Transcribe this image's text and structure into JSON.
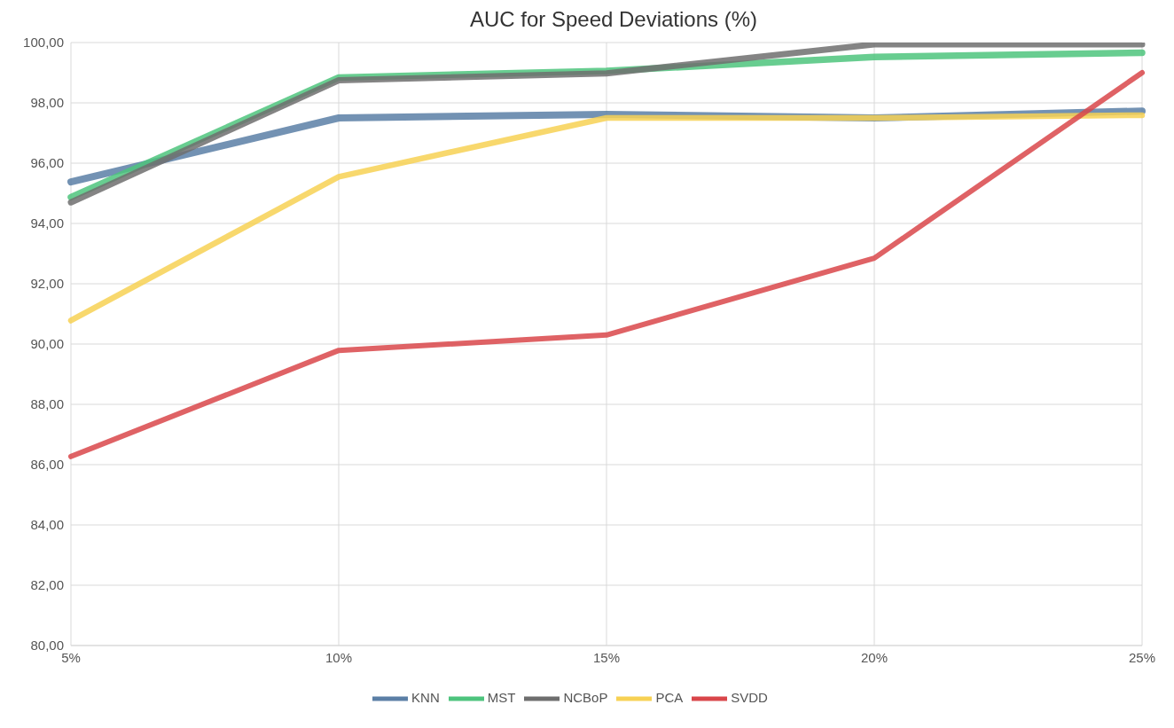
{
  "chart_data": {
    "type": "line",
    "title": "AUC for Speed Deviations (%)",
    "categories": [
      "5%",
      "10%",
      "15%",
      "20%",
      "25%"
    ],
    "series": [
      {
        "name": "KNN",
        "color": "#5b7fa6",
        "values": [
          95.38,
          97.5,
          97.62,
          97.5,
          97.73
        ]
      },
      {
        "name": "MST",
        "color": "#4dc47d",
        "values": [
          94.87,
          98.84,
          99.06,
          99.52,
          99.66
        ]
      },
      {
        "name": "NCBoP",
        "color": "#6e6e6e",
        "values": [
          94.7,
          98.75,
          98.98,
          99.94,
          99.94
        ]
      },
      {
        "name": "PCA",
        "color": "#f7d154",
        "values": [
          90.78,
          95.55,
          97.5,
          97.5,
          97.59
        ]
      },
      {
        "name": "SVDD",
        "color": "#d9464a",
        "values": [
          86.27,
          89.79,
          90.3,
          92.85,
          99.0
        ]
      }
    ],
    "ylim": [
      80,
      100
    ],
    "yticks": [
      {
        "value": 80,
        "label": "80,00"
      },
      {
        "value": 82,
        "label": "82,00"
      },
      {
        "value": 84,
        "label": "84,00"
      },
      {
        "value": 86,
        "label": "86,00"
      },
      {
        "value": 88,
        "label": "88,00"
      },
      {
        "value": 90,
        "label": "90,00"
      },
      {
        "value": 92,
        "label": "92,00"
      },
      {
        "value": 94,
        "label": "94,00"
      },
      {
        "value": 96,
        "label": "96,00"
      },
      {
        "value": 98,
        "label": "98,00"
      },
      {
        "value": 100,
        "label": "100,00"
      }
    ],
    "grid": true,
    "legend": "bottom",
    "marker": "none",
    "line_style": "solid"
  }
}
